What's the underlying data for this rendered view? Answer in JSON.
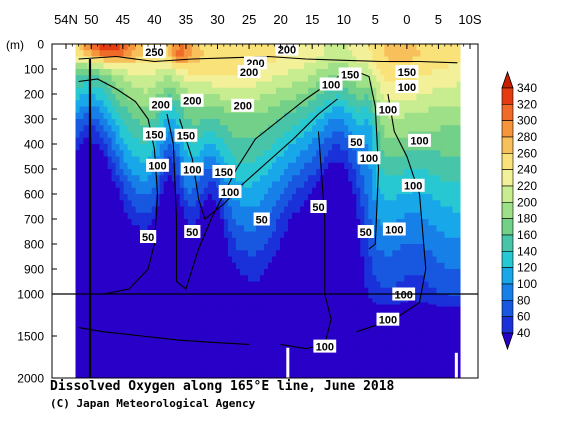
{
  "chart_data": {
    "type": "heatmap",
    "title": "Dissolved Oxygen along 165°E line, June 2018",
    "credit": "(C) Japan Meteorological Agency",
    "xlabel": "",
    "ylabel": "(m)",
    "x_ticks": [
      "54N",
      "50",
      "45",
      "40",
      "35",
      "30",
      "25",
      "20",
      "15",
      "10",
      "5",
      "0",
      "5",
      "10S"
    ],
    "x_range": [
      54,
      -10
    ],
    "y_ticks": [
      "0",
      "100",
      "200",
      "300",
      "400",
      "500",
      "600",
      "700",
      "800",
      "900",
      "1000",
      "1500",
      "2000"
    ],
    "y_range": [
      0,
      2000
    ],
    "y_scale": "piecewise linear: 0–1000 m upper panel, 1000–2000 m compressed lower panel",
    "colorbar": {
      "levels": [
        "340",
        "320",
        "300",
        "280",
        "260",
        "240",
        "220",
        "200",
        "180",
        "160",
        "140",
        "120",
        "100",
        "80",
        "60",
        "40"
      ],
      "colors": [
        "#c81e00",
        "#e43c10",
        "#f06a28",
        "#f5963c",
        "#f8c05a",
        "#fae27a",
        "#f2f098",
        "#c8ec90",
        "#9ee088",
        "#72d088",
        "#48c4a8",
        "#28c8d2",
        "#18a8ea",
        "#1680e8",
        "#1858e0",
        "#1a30d8",
        "#2800c8"
      ],
      "extend": "both"
    },
    "contour_labels": [
      {
        "text": "250",
        "lat": 40,
        "depth": 30
      },
      {
        "text": "200",
        "lat": 19,
        "depth": 20
      },
      {
        "text": "200",
        "lat": 24,
        "depth": 75
      },
      {
        "text": "200",
        "lat": 25,
        "depth": 110
      },
      {
        "text": "200",
        "lat": 39,
        "depth": 240
      },
      {
        "text": "200",
        "lat": 34,
        "depth": 225
      },
      {
        "text": "200",
        "lat": 26,
        "depth": 245
      },
      {
        "text": "150",
        "lat": 9,
        "depth": 120
      },
      {
        "text": "100",
        "lat": 12,
        "depth": 160
      },
      {
        "text": "150",
        "lat": 0,
        "depth": 110
      },
      {
        "text": "100",
        "lat": 0,
        "depth": 170
      },
      {
        "text": "150",
        "lat": 40,
        "depth": 360
      },
      {
        "text": "150",
        "lat": 35,
        "depth": 365
      },
      {
        "text": "150",
        "lat": 29,
        "depth": 510
      },
      {
        "text": "100",
        "lat": 34,
        "depth": 500
      },
      {
        "text": "100",
        "lat": 39.5,
        "depth": 485
      },
      {
        "text": "100",
        "lat": 28,
        "depth": 590
      },
      {
        "text": "100",
        "lat": 3,
        "depth": 260
      },
      {
        "text": "100",
        "lat": -2,
        "depth": 385
      },
      {
        "text": "100",
        "lat": 6,
        "depth": 455
      },
      {
        "text": "100",
        "lat": -1,
        "depth": 565
      },
      {
        "text": "100",
        "lat": 2,
        "depth": 740
      },
      {
        "text": "50",
        "lat": 8,
        "depth": 390
      },
      {
        "text": "50",
        "lat": 14,
        "depth": 650
      },
      {
        "text": "50",
        "lat": 6.5,
        "depth": 750
      },
      {
        "text": "50",
        "lat": 23,
        "depth": 700
      },
      {
        "text": "50",
        "lat": 34,
        "depth": 750
      },
      {
        "text": "50",
        "lat": 41,
        "depth": 770
      },
      {
        "text": "100",
        "lat": 0.5,
        "depth": 1000
      },
      {
        "text": "100",
        "lat": 3,
        "depth": 1300
      },
      {
        "text": "100",
        "lat": 13,
        "depth": 1620
      }
    ]
  }
}
